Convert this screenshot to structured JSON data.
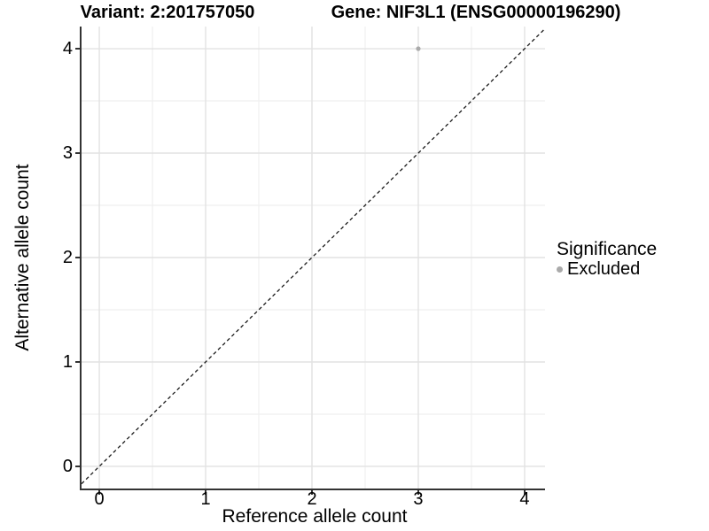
{
  "titles": {
    "variant": "Variant: 2:201757050",
    "gene": "Gene: NIF3L1 (ENSG00000196290)"
  },
  "legend": {
    "title": "Significance",
    "position": "right",
    "items": [
      {
        "label": "Excluded",
        "color": "#aaaaaa"
      }
    ]
  },
  "chart_data": {
    "type": "scatter",
    "title_left": "Variant: 2:201757050",
    "title_right": "Gene: NIF3L1 (ENSG00000196290)",
    "xlabel": "Reference allele count",
    "ylabel": "Alternative allele count",
    "xticks": [
      0,
      1,
      2,
      3,
      4
    ],
    "yticks": [
      0,
      1,
      2,
      3,
      4
    ],
    "xlim": [
      -0.167,
      4.192
    ],
    "ylim": [
      -0.212,
      4.212
    ],
    "grid": {
      "major": true,
      "minor": true
    },
    "legend_title": "Significance",
    "legend_position": "right",
    "series": [
      {
        "name": "Excluded",
        "color": "#aaaaaa",
        "points": [
          {
            "x": 3,
            "y": 4
          }
        ]
      }
    ],
    "reference_line": {
      "type": "identity",
      "slope": 1,
      "intercept": 0,
      "style": "dashed",
      "color": "#1a1a1a"
    }
  },
  "colors": {
    "background": "#ffffff",
    "axis_line": "#333333",
    "grid_major": "#e2e2e2",
    "grid_minor": "#efefef",
    "tick": "#333333",
    "text": "#000000"
  }
}
